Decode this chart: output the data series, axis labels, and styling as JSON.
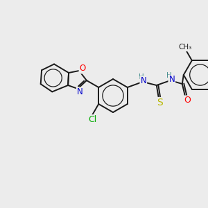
{
  "background_color": "#ececec",
  "bond_color": "#1a1a1a",
  "atom_colors": {
    "O": "#ff0000",
    "N": "#0000cc",
    "S": "#b8b800",
    "Cl": "#00aa00",
    "C": "#1a1a1a",
    "H": "#4a9090"
  },
  "figsize": [
    3.0,
    3.0
  ],
  "dpi": 100
}
